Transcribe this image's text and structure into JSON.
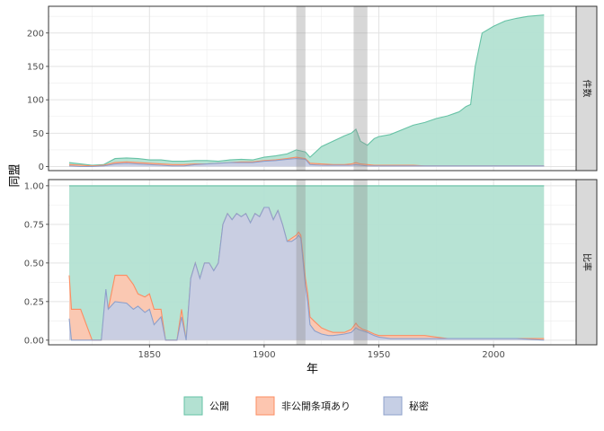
{
  "chart_data": {
    "type": "area",
    "xlabel": "年",
    "ylabel": "同盟",
    "xlim": [
      1806,
      2036
    ],
    "x_ticks": [
      1850,
      1900,
      1950,
      2000
    ],
    "shaded_periods": [
      [
        1914,
        1918
      ],
      [
        1939,
        1945
      ]
    ],
    "grid": true,
    "legend_position": "bottom",
    "legend": [
      {
        "label": "公開",
        "color": "#66C2A5",
        "fill": "#B3E1D2"
      },
      {
        "label": "非公開条項あり",
        "color": "#FC8D62",
        "fill": "#FDC6B0"
      },
      {
        "label": "秘密",
        "color": "#8DA0CB",
        "fill": "#C6CFE5"
      }
    ],
    "panels": [
      {
        "strip": "件数",
        "ylim": [
          -6,
          240
        ],
        "y_ticks": [
          0,
          50,
          100,
          150,
          200
        ],
        "years": [
          1815,
          1820,
          1825,
          1830,
          1835,
          1840,
          1845,
          1850,
          1855,
          1860,
          1865,
          1870,
          1875,
          1880,
          1885,
          1890,
          1895,
          1900,
          1905,
          1910,
          1914,
          1918,
          1920,
          1925,
          1930,
          1935,
          1938,
          1940,
          1942,
          1945,
          1948,
          1950,
          1955,
          1960,
          1965,
          1970,
          1975,
          1980,
          1985,
          1988,
          1990,
          1992,
          1995,
          2000,
          2005,
          2010,
          2015,
          2022
        ],
        "series": [
          {
            "name": "公開",
            "values": [
              6,
              4,
              2,
              3,
              12,
              13,
              12,
              10,
              10,
              8,
              8,
              9,
              9,
              8,
              10,
              11,
              10,
              14,
              16,
              19,
              25,
              22,
              14,
              30,
              38,
              46,
              50,
              56,
              38,
              32,
              42,
              45,
              48,
              55,
              62,
              66,
              72,
              76,
              82,
              90,
              93,
              150,
              200,
              210,
              218,
              222,
              225,
              227
            ]
          },
          {
            "name": "非公開条項あり",
            "values": [
              3,
              2,
              1,
              2,
              6,
              7,
              6,
              5,
              4,
              3,
              3,
              4,
              4,
              5,
              6,
              7,
              7,
              9,
              10,
              12,
              14,
              12,
              5,
              4,
              3,
              3,
              4,
              6,
              4,
              3,
              2,
              2,
              2,
              2,
              2,
              1,
              1,
              1,
              1,
              1,
              1,
              1,
              1,
              1,
              1,
              1,
              1,
              1
            ]
          },
          {
            "name": "秘密",
            "values": [
              1,
              0,
              0,
              1,
              4,
              5,
              4,
              3,
              2,
              1,
              1,
              3,
              4,
              5,
              6,
              6,
              6,
              8,
              9,
              11,
              12,
              11,
              3,
              2,
              2,
              2,
              2,
              3,
              2,
              1,
              1,
              1,
              1,
              1,
              1,
              1,
              1,
              1,
              1,
              1,
              1,
              1,
              1,
              1,
              1,
              1,
              1,
              1
            ]
          }
        ]
      },
      {
        "strip": "比率",
        "ylim": [
          -0.03,
          1.04
        ],
        "y_ticks": [
          0.0,
          0.25,
          0.5,
          0.75,
          1.0
        ],
        "years": [
          1815,
          1816,
          1820,
          1825,
          1829,
          1831,
          1832,
          1835,
          1840,
          1843,
          1845,
          1848,
          1850,
          1852,
          1855,
          1857,
          1860,
          1862,
          1864,
          1866,
          1868,
          1870,
          1872,
          1874,
          1876,
          1878,
          1880,
          1882,
          1884,
          1886,
          1888,
          1890,
          1892,
          1894,
          1896,
          1898,
          1900,
          1902,
          1904,
          1906,
          1908,
          1910,
          1912,
          1914,
          1915,
          1916,
          1918,
          1919,
          1920,
          1922,
          1925,
          1928,
          1930,
          1935,
          1938,
          1940,
          1941,
          1943,
          1945,
          1948,
          1950,
          1955,
          1958,
          1960,
          1965,
          1970,
          1975,
          1980,
          1985,
          1990,
          2000,
          2010,
          2022
        ],
        "series": [
          {
            "name": "公開",
            "values": [
              1,
              1,
              1,
              1,
              1,
              1,
              1,
              1,
              1,
              1,
              1,
              1,
              1,
              1,
              1,
              1,
              1,
              1,
              1,
              1,
              1,
              1,
              1,
              1,
              1,
              1,
              1,
              1,
              1,
              1,
              1,
              1,
              1,
              1,
              1,
              1,
              1,
              1,
              1,
              1,
              1,
              1,
              1,
              1,
              1,
              1,
              1,
              1,
              1,
              1,
              1,
              1,
              1,
              1,
              1,
              1,
              1,
              1,
              1,
              1,
              1,
              1,
              1,
              1,
              1,
              1,
              1,
              1,
              1,
              1,
              1,
              1,
              1
            ]
          },
          {
            "name": "非公開条項あり",
            "values": [
              0.42,
              0.2,
              0.2,
              0.0,
              0.0,
              0.3,
              0.2,
              0.42,
              0.42,
              0.36,
              0.3,
              0.28,
              0.3,
              0.2,
              0.2,
              0.0,
              0.0,
              0.0,
              0.2,
              0.0,
              0.4,
              0.5,
              0.4,
              0.5,
              0.5,
              0.45,
              0.5,
              0.75,
              0.82,
              0.78,
              0.82,
              0.8,
              0.82,
              0.76,
              0.82,
              0.8,
              0.86,
              0.86,
              0.78,
              0.84,
              0.75,
              0.64,
              0.66,
              0.68,
              0.7,
              0.68,
              0.4,
              0.3,
              0.15,
              0.12,
              0.08,
              0.06,
              0.05,
              0.05,
              0.07,
              0.11,
              0.09,
              0.07,
              0.06,
              0.04,
              0.03,
              0.03,
              0.03,
              0.03,
              0.03,
              0.03,
              0.02,
              0.01,
              0.01,
              0.01,
              0.01,
              0.01,
              0.01
            ]
          },
          {
            "name": "秘密",
            "values": [
              0.14,
              0.0,
              0.0,
              0.0,
              0.0,
              0.33,
              0.2,
              0.25,
              0.24,
              0.2,
              0.22,
              0.18,
              0.2,
              0.1,
              0.15,
              0.0,
              0.0,
              0.0,
              0.15,
              0.0,
              0.4,
              0.5,
              0.4,
              0.5,
              0.5,
              0.45,
              0.5,
              0.75,
              0.82,
              0.78,
              0.82,
              0.8,
              0.82,
              0.76,
              0.82,
              0.8,
              0.86,
              0.86,
              0.78,
              0.84,
              0.75,
              0.64,
              0.64,
              0.66,
              0.68,
              0.66,
              0.35,
              0.25,
              0.1,
              0.06,
              0.04,
              0.03,
              0.03,
              0.04,
              0.05,
              0.08,
              0.07,
              0.06,
              0.05,
              0.03,
              0.02,
              0.01,
              0.01,
              0.01,
              0.01,
              0.01,
              0.01,
              0.01,
              0.01,
              0.01,
              0.01,
              0.01,
              0.0
            ]
          }
        ]
      }
    ]
  }
}
